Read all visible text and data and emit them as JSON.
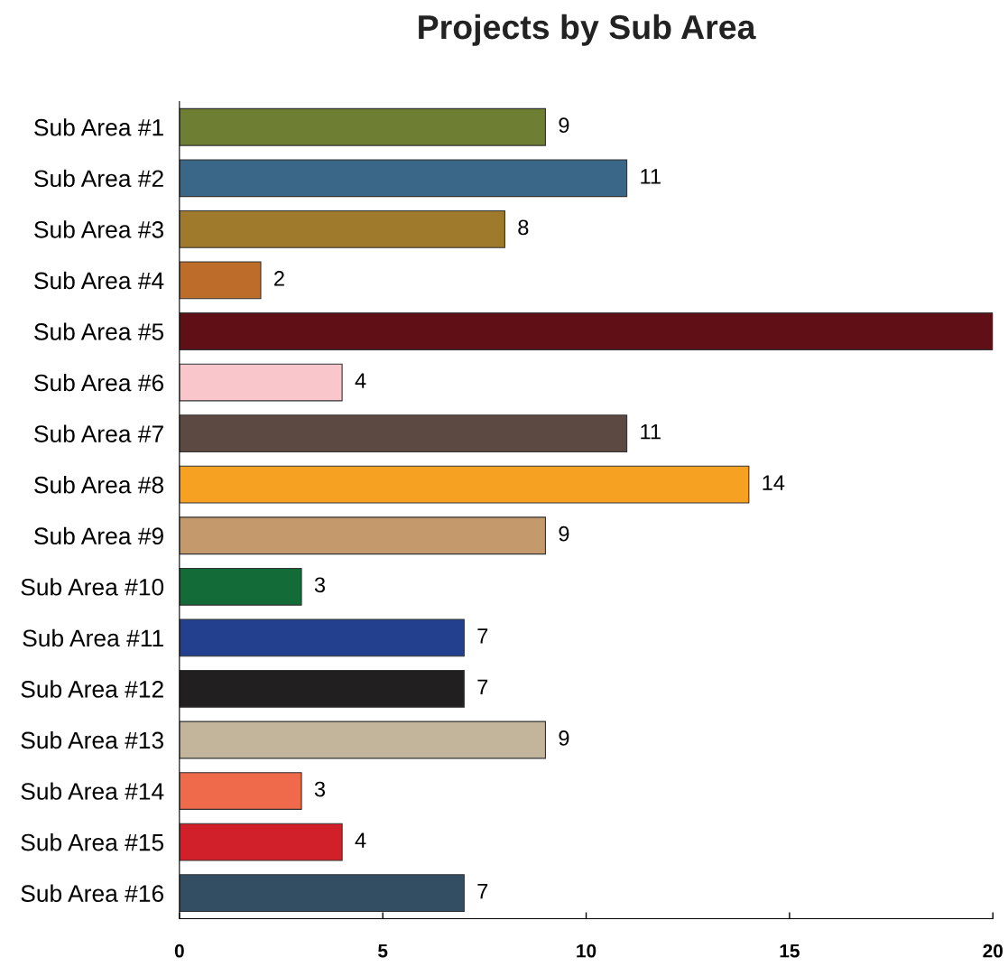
{
  "chart_data": {
    "type": "bar",
    "orientation": "horizontal",
    "title": "Projects by Sub Area",
    "categories": [
      "Sub Area #1",
      "Sub Area #2",
      "Sub Area #3",
      "Sub Area #4",
      "Sub Area #5",
      "Sub Area #6",
      "Sub Area #7",
      "Sub Area #8",
      "Sub Area #9",
      "Sub Area #10",
      "Sub Area #11",
      "Sub Area #12",
      "Sub Area #13",
      "Sub Area #14",
      "Sub Area #15",
      "Sub Area #16"
    ],
    "values": [
      9,
      11,
      8,
      2,
      20,
      4,
      11,
      14,
      9,
      3,
      7,
      7,
      9,
      3,
      4,
      7
    ],
    "value_labels": [
      "9",
      "11",
      "8",
      "2",
      null,
      "4",
      "11",
      "14",
      "9",
      "3",
      "7",
      "7",
      "9",
      "3",
      "4",
      "7"
    ],
    "colors": [
      "#6e7e33",
      "#3a6688",
      "#a07a2c",
      "#bd6c2a",
      "#600f17",
      "#f8c6cb",
      "#5c4a42",
      "#f7a122",
      "#c49a6c",
      "#136b38",
      "#22408e",
      "#221f20",
      "#c3b59c",
      "#ef6a4b",
      "#d2202a",
      "#334d62"
    ],
    "xlim": [
      0,
      20
    ],
    "xticks": [
      0,
      5,
      10,
      15,
      20
    ],
    "grid": false,
    "legend": false
  }
}
